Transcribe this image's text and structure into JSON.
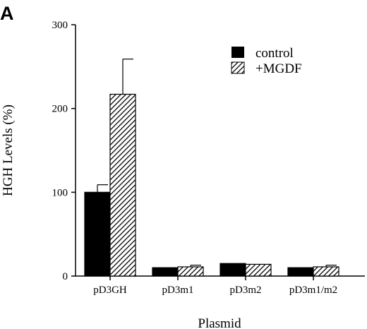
{
  "panel_label": "A",
  "colors": {
    "control": "#000000",
    "mgdf_hatch": "#000000",
    "axis": "#000000"
  },
  "chart_data": {
    "type": "bar",
    "title": "",
    "xlabel": "Plasmid",
    "ylabel": "HGH Levels (%)",
    "ylim": [
      0,
      300
    ],
    "yticks": [
      0,
      100,
      200,
      300
    ],
    "categories": [
      "pD3GH",
      "pD3m1",
      "pD3m2",
      "pD3m1/m2"
    ],
    "series": [
      {
        "name": "control",
        "pattern": "solid",
        "values": [
          100,
          10,
          15,
          10
        ],
        "errors": [
          9,
          0,
          0,
          0
        ]
      },
      {
        "name": "+MGDF",
        "pattern": "hatched",
        "values": [
          217,
          11,
          14,
          11
        ],
        "errors": [
          42,
          2,
          0,
          2
        ]
      }
    ],
    "legend": "top-right",
    "grid": false
  }
}
